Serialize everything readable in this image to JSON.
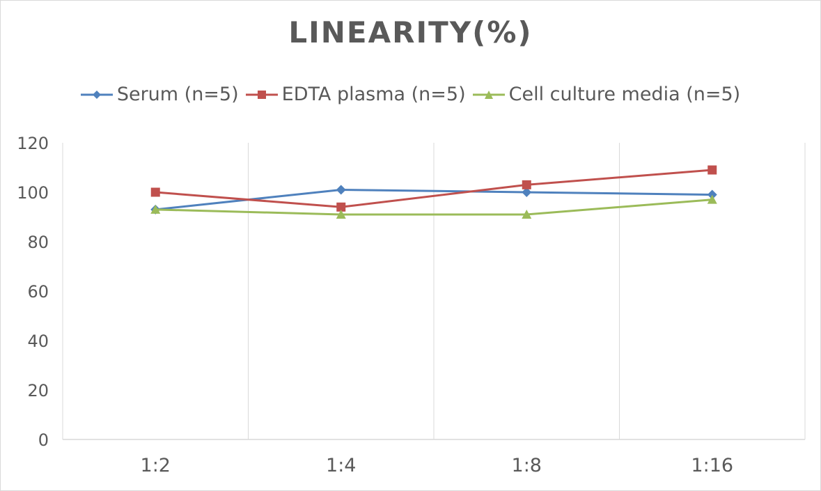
{
  "chart_data": {
    "type": "line",
    "title": "LINEARITY(%)",
    "xlabel": "",
    "ylabel": "",
    "categories": [
      "1:2",
      "1:4",
      "1:8",
      "1:16"
    ],
    "ylim": [
      0,
      120
    ],
    "yticks": [
      0,
      20,
      40,
      60,
      80,
      100,
      120
    ],
    "grid": "vertical",
    "legend_position": "top",
    "series": [
      {
        "name": "Serum (n=5)",
        "color": "#4f81bd",
        "marker": "diamond",
        "values": [
          93,
          101,
          100,
          99
        ]
      },
      {
        "name": "EDTA plasma (n=5)",
        "color": "#c0504d",
        "marker": "square",
        "values": [
          100,
          94,
          103,
          109
        ]
      },
      {
        "name": "Cell culture media (n=5)",
        "color": "#9bbb59",
        "marker": "triangle",
        "values": [
          93,
          91,
          91,
          97
        ]
      }
    ]
  }
}
